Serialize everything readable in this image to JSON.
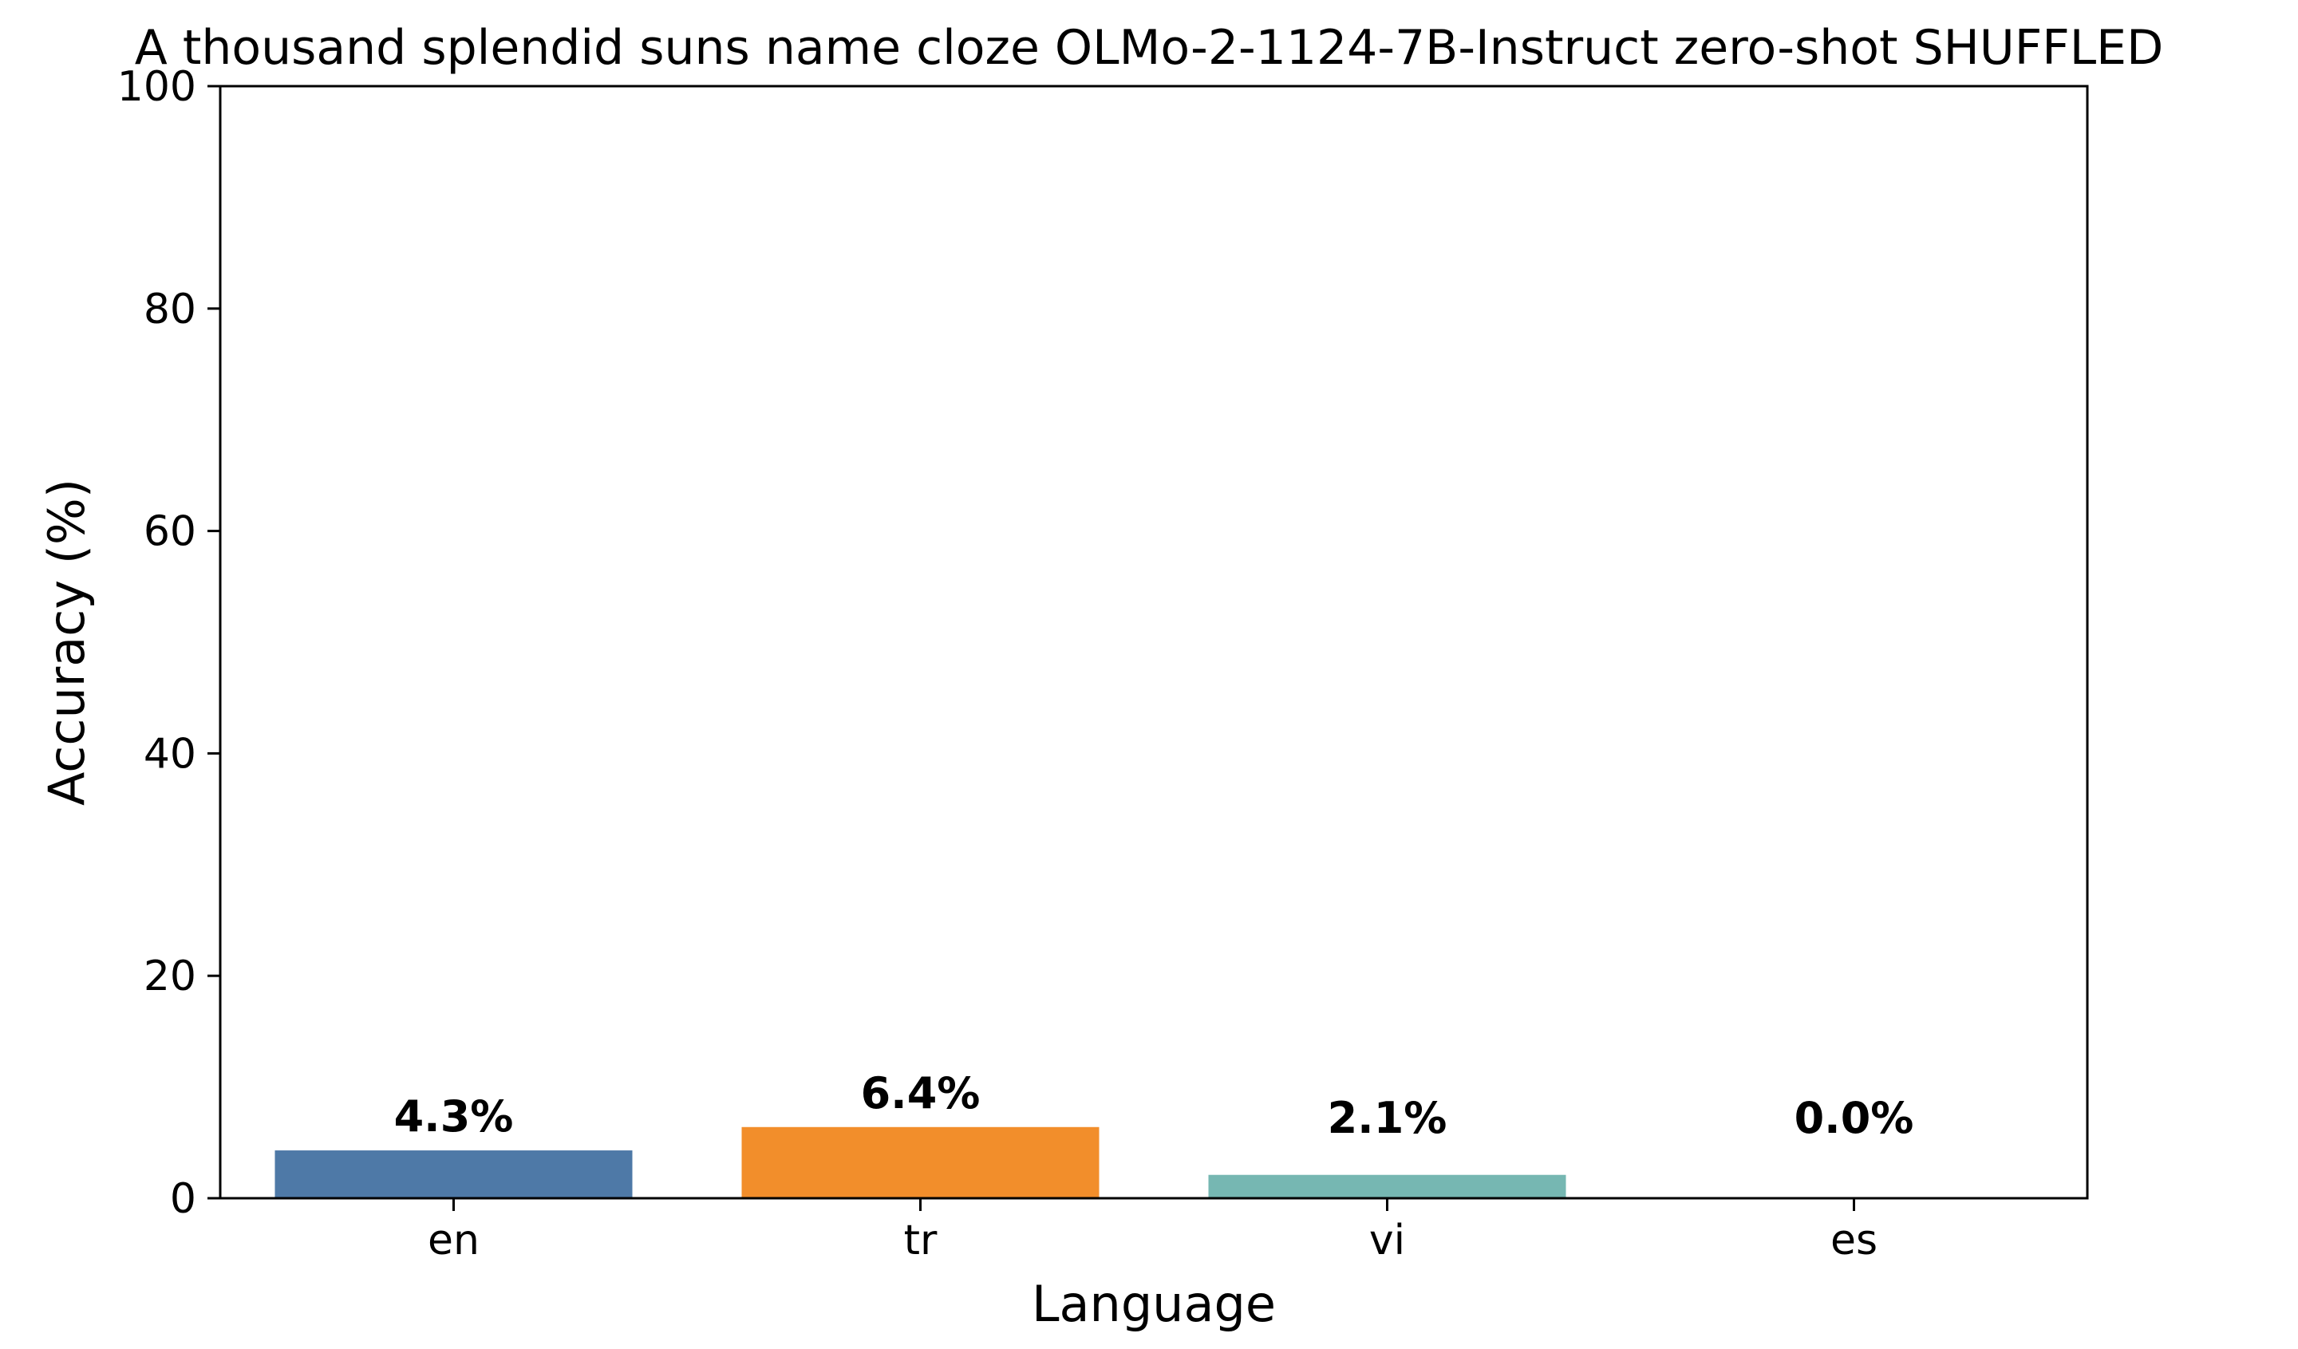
{
  "chart_data": {
    "type": "bar",
    "title": "A thousand splendid suns name cloze OLMo-2-1124-7B-Instruct zero-shot SHUFFLED",
    "xlabel": "Language",
    "ylabel": "Accuracy (%)",
    "categories": [
      "en",
      "tr",
      "vi",
      "es"
    ],
    "values": [
      4.3,
      6.4,
      2.1,
      0.0
    ],
    "value_labels": [
      "4.3%",
      "6.4%",
      "2.1%",
      "0.0%"
    ],
    "colors": [
      "#4e79a7",
      "#f28e2b",
      "#76b7b2",
      "#e15759"
    ],
    "ylim": [
      0,
      100
    ],
    "yticks": [
      0,
      20,
      40,
      60,
      80,
      100
    ],
    "ytick_labels": [
      "0",
      "20",
      "40",
      "60",
      "80",
      "100"
    ],
    "grid": false,
    "legend": false
  }
}
